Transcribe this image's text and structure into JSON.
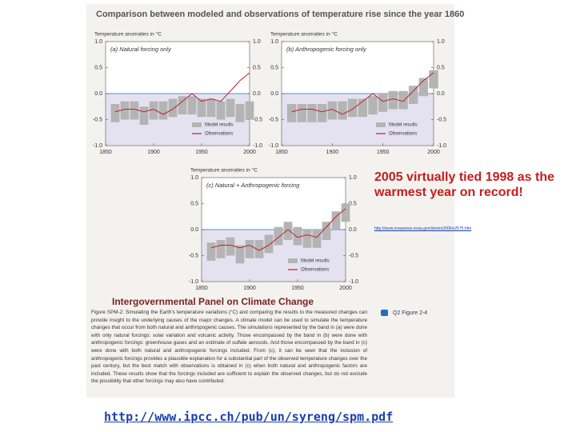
{
  "heading": "Comparison between modeled and observations of temperature rise since the year 1860",
  "chart_data": [
    {
      "type": "line",
      "title": "(a) Natural forcing only",
      "y_label": "Temperature anomalies in °C",
      "x": [
        1860,
        1870,
        1880,
        1890,
        1900,
        1910,
        1920,
        1930,
        1940,
        1950,
        1960,
        1970,
        1980,
        1990,
        2000
      ],
      "xlim": [
        1850,
        2000
      ],
      "xticks": [
        1850,
        1900,
        1950,
        2000
      ],
      "ylim": [
        -1,
        1
      ],
      "yticks": [
        {
          "value": -1,
          "label": "-1.0"
        },
        -0.5,
        {
          "value": 0,
          "label": "0.0"
        },
        0.5,
        {
          "value": 1,
          "label": "1.0"
        }
      ],
      "series": [
        {
          "name": "Model results",
          "color": "#b4b4b4",
          "low": [
            -0.55,
            -0.5,
            -0.5,
            -0.6,
            -0.5,
            -0.5,
            -0.45,
            -0.4,
            -0.4,
            -0.45,
            -0.45,
            -0.5,
            -0.45,
            -0.55,
            -0.5
          ],
          "high": [
            -0.2,
            -0.15,
            -0.15,
            -0.25,
            -0.15,
            -0.15,
            -0.1,
            -0.05,
            -0.05,
            -0.1,
            -0.1,
            -0.15,
            -0.1,
            -0.2,
            -0.15
          ]
        },
        {
          "name": "Observations",
          "color": "#c0202a",
          "values": [
            -0.35,
            -0.3,
            -0.3,
            -0.35,
            -0.3,
            -0.4,
            -0.3,
            -0.15,
            0.0,
            -0.15,
            -0.1,
            -0.15,
            0.05,
            0.25,
            0.4
          ]
        }
      ]
    },
    {
      "type": "line",
      "title": "(b) Anthropogenic forcing only",
      "y_label": "Temperature anomalies in °C",
      "x": [
        1860,
        1870,
        1880,
        1890,
        1900,
        1910,
        1920,
        1930,
        1940,
        1950,
        1960,
        1970,
        1980,
        1990,
        2000
      ],
      "xlim": [
        1850,
        2000
      ],
      "xticks": [
        1850,
        1900,
        1950,
        2000
      ],
      "ylim": [
        -1,
        1
      ],
      "yticks": [
        {
          "value": -1,
          "label": "-1.0"
        },
        -0.5,
        {
          "value": 0,
          "label": "0.0"
        },
        0.5,
        {
          "value": 1,
          "label": "1.0"
        }
      ],
      "series": [
        {
          "name": "Model results",
          "color": "#b4b4b4",
          "low": [
            -0.55,
            -0.55,
            -0.55,
            -0.55,
            -0.5,
            -0.5,
            -0.45,
            -0.45,
            -0.4,
            -0.35,
            -0.3,
            -0.3,
            -0.2,
            -0.05,
            0.1
          ],
          "high": [
            -0.2,
            -0.2,
            -0.2,
            -0.2,
            -0.15,
            -0.15,
            -0.1,
            -0.1,
            -0.05,
            0.0,
            0.05,
            0.05,
            0.15,
            0.3,
            0.45
          ]
        },
        {
          "name": "Observations",
          "color": "#c0202a",
          "values": [
            -0.35,
            -0.3,
            -0.3,
            -0.35,
            -0.3,
            -0.4,
            -0.3,
            -0.15,
            0.0,
            -0.15,
            -0.1,
            -0.15,
            0.05,
            0.25,
            0.4
          ]
        }
      ]
    },
    {
      "type": "line",
      "title": "(c) Natural + Anthropogenic forcing",
      "y_label": "Temperature anomalies in °C",
      "x": [
        1860,
        1870,
        1880,
        1890,
        1900,
        1910,
        1920,
        1930,
        1940,
        1950,
        1960,
        1970,
        1980,
        1990,
        2000
      ],
      "xlim": [
        1850,
        2000
      ],
      "xticks": [
        1850,
        1900,
        1950,
        2000
      ],
      "ylim": [
        -1,
        1
      ],
      "yticks": [
        {
          "value": -1,
          "label": "-1.0"
        },
        -0.5,
        {
          "value": 0,
          "label": "0.0"
        },
        0.5,
        {
          "value": 1,
          "label": "1.0"
        }
      ],
      "series": [
        {
          "name": "Model results",
          "color": "#b4b4b4",
          "low": [
            -0.6,
            -0.55,
            -0.5,
            -0.65,
            -0.55,
            -0.55,
            -0.45,
            -0.3,
            -0.2,
            -0.3,
            -0.35,
            -0.35,
            -0.2,
            0.0,
            0.15
          ],
          "high": [
            -0.25,
            -0.2,
            -0.15,
            -0.3,
            -0.2,
            -0.2,
            -0.1,
            0.05,
            0.15,
            0.05,
            0.0,
            0.0,
            0.15,
            0.35,
            0.5
          ]
        },
        {
          "name": "Observations",
          "color": "#c0202a",
          "values": [
            -0.35,
            -0.3,
            -0.3,
            -0.35,
            -0.3,
            -0.4,
            -0.3,
            -0.15,
            0.0,
            -0.15,
            -0.1,
            -0.15,
            0.05,
            0.25,
            0.4
          ]
        }
      ]
    }
  ],
  "callout": "2005 virtually tied 1998 as the warmest year on record!",
  "callout_source": "http://www.noaanews.noaa.gov/stories2006/s2575.htm",
  "panel_name": "Intergovernmental Panel on Climate Change",
  "figure_link": "Q2 Figure 2-4",
  "caption": "Figure SPM-2: Simulating the Earth's temperature variations (°C) and comparing the results to the measured changes can provide insight to the underlying causes of the major changes. A climate model can be used to simulate the temperature changes that occur from both natural and anthropogenic causes. The simulations represented by the band in (a) were done with only natural forcings: solar variation and volcanic activity. Those encompassed by the band in (b) were done with anthropogenic forcings: greenhouse gases and an estimate of sulfate aerosols. And those encompassed by the band in (c) were done with both natural and anthropogenic forcings included. From (c), it can be seen that the inclusion of anthropogenic forcings provides a plausible explanation for a substantial part of the observed temperature changes over the past century, but the best match with observations is obtained in (c) when both natural and anthropogenic factors are included. These results show that the forcings included are sufficient to explain the observed changes, but do not exclude the possibility that other forcings may also have contributed.",
  "source_url": "http://www.ipcc.ch/pub/un/syreng/spm.pdf"
}
